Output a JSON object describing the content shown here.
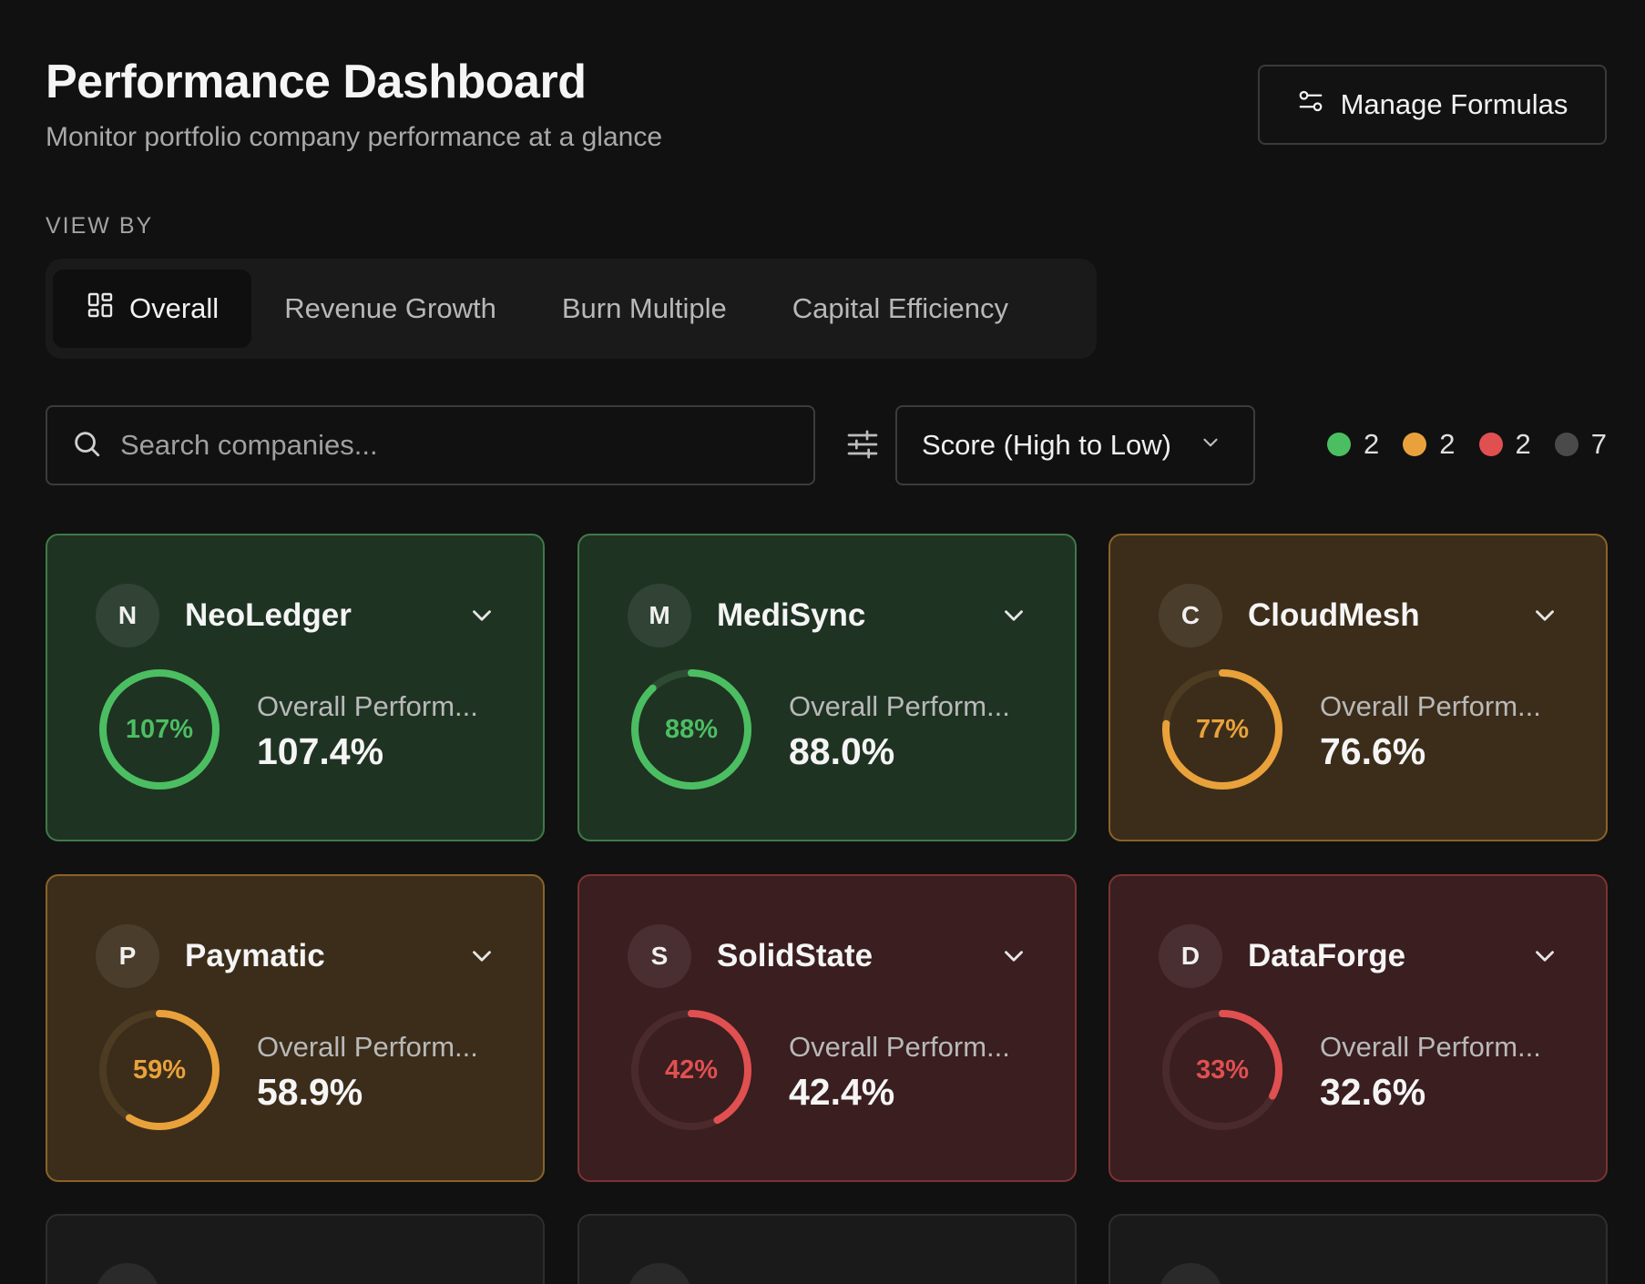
{
  "header": {
    "title": "Performance Dashboard",
    "subtitle": "Monitor portfolio company performance at a glance",
    "manage_label": "Manage Formulas"
  },
  "view_by": {
    "label": "VIEW BY",
    "tabs": [
      {
        "label": "Overall",
        "active": true
      },
      {
        "label": "Revenue Growth",
        "active": false
      },
      {
        "label": "Burn Multiple",
        "active": false
      },
      {
        "label": "Capital Efficiency",
        "active": false
      }
    ]
  },
  "search": {
    "placeholder": "Search companies...",
    "value": ""
  },
  "sort": {
    "selected": "Score (High to Low)"
  },
  "legend": [
    {
      "color": "#4cbe62",
      "count": "2"
    },
    {
      "color": "#e9a23b",
      "count": "2"
    },
    {
      "color": "#e05050",
      "count": "2"
    },
    {
      "color": "#4a4a4a",
      "count": "7"
    }
  ],
  "status_colors": {
    "green": {
      "ring": "#4cbe62",
      "track": "#2e4a33",
      "bg": "#1f3323",
      "border": "#3e7a48"
    },
    "orange": {
      "ring": "#e9a23b",
      "track": "#4d3b22",
      "bg": "#3c2d1a",
      "border": "#8a6328"
    },
    "red": {
      "ring": "#e05050",
      "track": "#4a2a2a",
      "bg": "#3a1e20",
      "border": "#7c3334"
    }
  },
  "companies": [
    {
      "initial": "N",
      "name": "NeoLedger",
      "ring_label": "107%",
      "metric_label": "Overall Perform...",
      "metric_value": "107.4%",
      "score": 1.074,
      "status": "green"
    },
    {
      "initial": "M",
      "name": "MediSync",
      "ring_label": "88%",
      "metric_label": "Overall Perform...",
      "metric_value": "88.0%",
      "score": 0.88,
      "status": "green"
    },
    {
      "initial": "C",
      "name": "CloudMesh",
      "ring_label": "77%",
      "metric_label": "Overall Perform...",
      "metric_value": "76.6%",
      "score": 0.766,
      "status": "orange"
    },
    {
      "initial": "P",
      "name": "Paymatic",
      "ring_label": "59%",
      "metric_label": "Overall Perform...",
      "metric_value": "58.9%",
      "score": 0.589,
      "status": "orange"
    },
    {
      "initial": "S",
      "name": "SolidState",
      "ring_label": "42%",
      "metric_label": "Overall Perform...",
      "metric_value": "42.4%",
      "score": 0.424,
      "status": "red"
    },
    {
      "initial": "D",
      "name": "DataForge",
      "ring_label": "33%",
      "metric_label": "Overall Perform...",
      "metric_value": "32.6%",
      "score": 0.326,
      "status": "red"
    }
  ]
}
